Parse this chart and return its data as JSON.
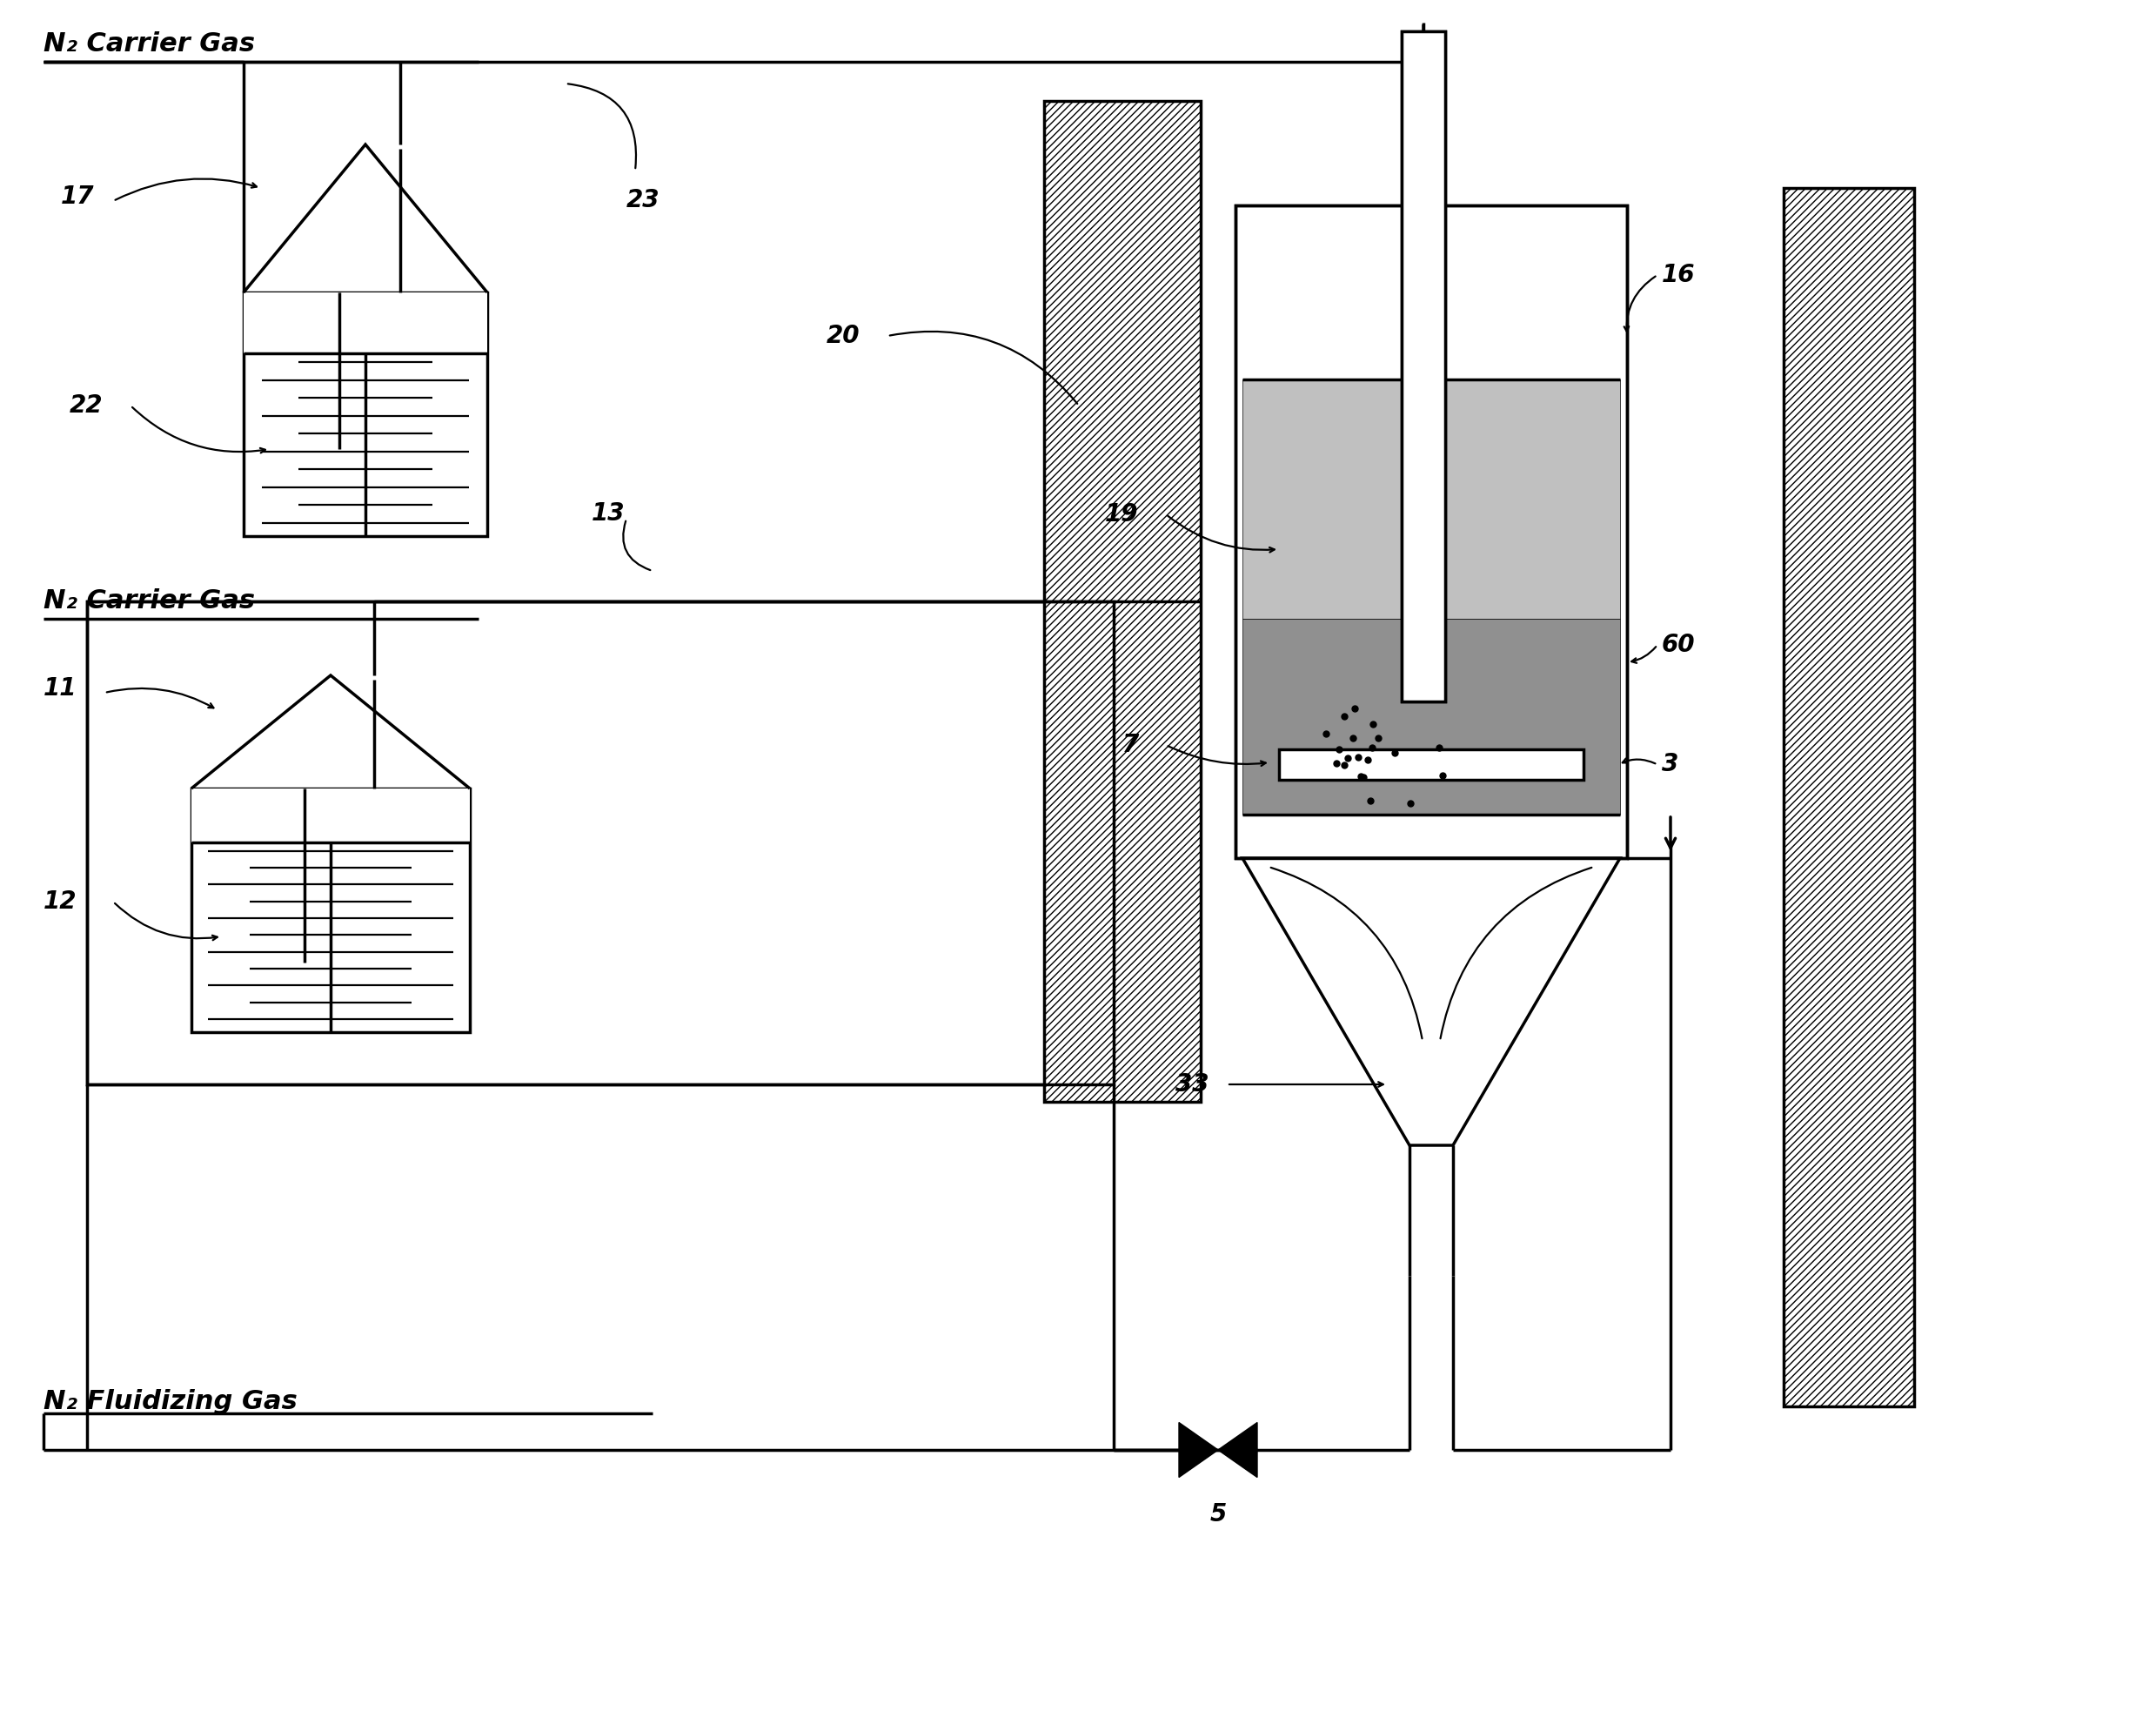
{
  "bg": "#ffffff",
  "lc": "#000000",
  "lw_main": 2.5,
  "lw_thin": 1.6,
  "fig_w": 24.78,
  "fig_h": 19.66,
  "gray_light": "#c0c0c0",
  "gray_dark": "#909090",
  "labels": {
    "N2_carrier_top": "N₂ Carrier Gas",
    "N2_carrier_bot": "N₂ Carrier Gas",
    "N2_fluidizing": "N₂ Fluidizing Gas",
    "17": "17",
    "22": "22",
    "23": "23",
    "11": "11",
    "12": "12",
    "13": "13",
    "20": "20",
    "19": "19",
    "7": "7",
    "3": "3",
    "33": "33",
    "16": "16",
    "60": "60",
    "5": "5"
  },
  "fs_num": 20,
  "fs_txt": 22
}
